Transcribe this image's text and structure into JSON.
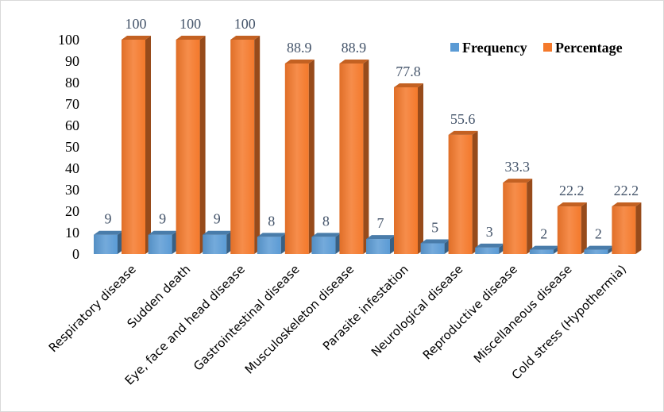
{
  "chart_data": {
    "type": "bar",
    "categories": [
      "Respiratory disease",
      "Sudden death",
      "Eye, face and head disease",
      "Gastrointestinal disease",
      "Musculoskeleton disease",
      "Parasite infestation",
      "Neurological disease",
      "Reproductive disease",
      "Miscellaneous disease",
      "Cold stress (Hypothermia)"
    ],
    "series": [
      {
        "name": "Frequency",
        "values": [
          9,
          9,
          9,
          8,
          8,
          7,
          5,
          3,
          2,
          2
        ],
        "labels": [
          "9",
          "9",
          "9",
          "8",
          "8",
          "7",
          "5",
          "3",
          "2",
          "2"
        ],
        "color": "#5b9bd5"
      },
      {
        "name": "Percentage",
        "values": [
          100,
          100,
          100,
          88.9,
          88.9,
          77.8,
          55.6,
          33.3,
          22.2,
          22.2
        ],
        "labels": [
          "100",
          "100",
          "100",
          "88.9",
          "88.9",
          "77.8",
          "55.6",
          "33.3",
          "22.2",
          "22.2"
        ],
        "color": "#f4792b"
      }
    ],
    "yticks": [
      "0",
      "10",
      "20",
      "30",
      "40",
      "50",
      "60",
      "70",
      "80",
      "90",
      "100"
    ],
    "ylim": [
      0,
      100
    ],
    "grid": false,
    "legend_position": "top-right",
    "style": "3d-column"
  }
}
